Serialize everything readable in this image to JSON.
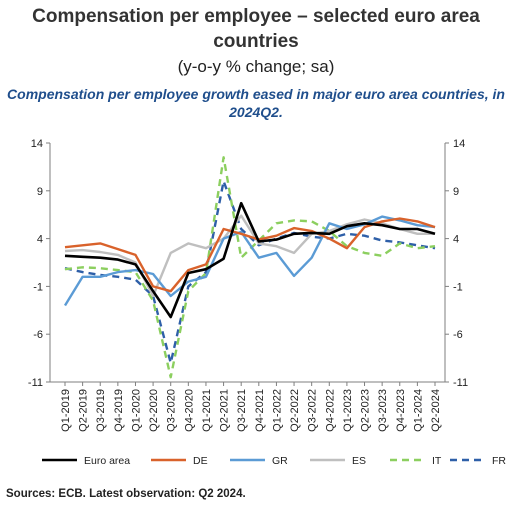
{
  "header": {
    "title": "Compensation per employee – selected euro area countries",
    "subtitle": "(y-o-y % change; sa)",
    "headline": "Compensation per employee growth eased in major euro area countries, in 2024Q2."
  },
  "footer": {
    "source": "Sources: ECB. Latest observation: Q2 2024."
  },
  "chart_data": {
    "type": "line",
    "title": "Compensation per employee – selected euro area countries",
    "subtitle": "(y-o-y % change; sa)",
    "xlabel": "",
    "ylabel": "",
    "ylim": [
      -11,
      14
    ],
    "yticks": [
      14,
      9,
      4,
      -1,
      -6,
      -11
    ],
    "grid": false,
    "dual_axis": true,
    "legend_position": "bottom",
    "categories": [
      "Q1-2019",
      "Q2-2019",
      "Q3-2019",
      "Q4-2019",
      "Q1-2020",
      "Q2-2020",
      "Q3-2020",
      "Q4-2020",
      "Q1-2021",
      "Q2-2021",
      "Q3-2021",
      "Q4-2021",
      "Q1-2022",
      "Q2-2022",
      "Q3-2022",
      "Q4-2022",
      "Q1-2023",
      "Q2-2023",
      "Q3-2023",
      "Q4-2023",
      "Q1-2024",
      "Q2-2024"
    ],
    "series": [
      {
        "name": "Euro area",
        "color": "#000000",
        "dash": "solid",
        "values": [
          2.2,
          2.1,
          2.0,
          1.8,
          1.3,
          -1.5,
          -4.2,
          0.4,
          0.8,
          1.9,
          7.7,
          3.7,
          3.9,
          4.5,
          4.6,
          4.5,
          5.3,
          5.6,
          5.4,
          5.0,
          5.0,
          4.5
        ]
      },
      {
        "name": "DE",
        "color": "#d9622b",
        "dash": "solid",
        "values": [
          3.1,
          3.3,
          3.5,
          2.9,
          2.3,
          -1.0,
          -1.5,
          0.7,
          1.3,
          5.0,
          4.5,
          3.9,
          4.3,
          5.1,
          4.8,
          4.0,
          3.0,
          5.2,
          5.8,
          6.1,
          5.8,
          5.2
        ]
      },
      {
        "name": "GR",
        "color": "#5b9bd5",
        "dash": "solid",
        "values": [
          -3.0,
          0.0,
          0.0,
          0.5,
          0.7,
          0.3,
          -2.0,
          -0.5,
          0.0,
          4.0,
          4.7,
          2.0,
          2.5,
          0.1,
          2.0,
          5.6,
          5.0,
          5.5,
          6.3,
          5.9,
          5.4,
          5.2
        ]
      },
      {
        "name": "ES",
        "color": "#bfbfbf",
        "dash": "solid",
        "values": [
          2.7,
          2.8,
          2.6,
          2.3,
          1.5,
          -2.0,
          2.5,
          3.5,
          3.0,
          4.0,
          6.4,
          3.5,
          3.2,
          2.5,
          4.5,
          4.8,
          5.5,
          6.0,
          5.6,
          5.0,
          4.5,
          4.5
        ]
      },
      {
        "name": "IT",
        "color": "#8ccf5f",
        "dash": "dash",
        "values": [
          0.8,
          1.0,
          0.9,
          0.7,
          0.5,
          -2.5,
          -10.5,
          -1.5,
          0.4,
          12.5,
          2.0,
          3.8,
          5.6,
          5.9,
          5.8,
          4.8,
          3.2,
          2.5,
          2.2,
          3.5,
          3.0,
          3.2
        ]
      },
      {
        "name": "FR",
        "color": "#2e5fa8",
        "dash": "dash",
        "values": [
          0.9,
          0.5,
          0.2,
          0.0,
          -0.3,
          -2.0,
          -9.0,
          -1.0,
          0.5,
          10.0,
          5.0,
          3.3,
          4.0,
          4.6,
          4.2,
          4.0,
          4.5,
          4.3,
          3.8,
          3.6,
          3.3,
          3.0
        ]
      }
    ]
  }
}
